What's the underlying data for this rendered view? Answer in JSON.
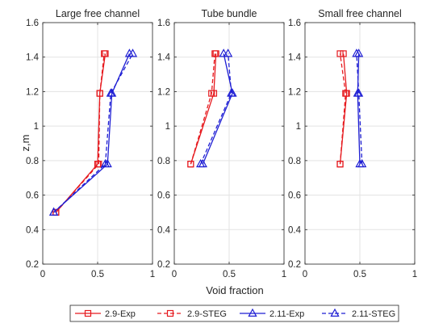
{
  "figure": {
    "ylabel": "z,m",
    "xlabel": "Void fraction"
  },
  "legend": {
    "placement": "bottom",
    "entries": [
      {
        "label": "2.9-Exp",
        "color": "#e6191e",
        "dash": false,
        "marker": "square"
      },
      {
        "label": "2.9-STEG",
        "color": "#e6191e",
        "dash": true,
        "marker": "square"
      },
      {
        "label": "2.11-Exp",
        "color": "#1f1fd4",
        "dash": false,
        "marker": "triangle"
      },
      {
        "label": "2.11-STEG",
        "color": "#1f1fd4",
        "dash": true,
        "marker": "triangle"
      }
    ]
  },
  "chart_data": [
    {
      "type": "line",
      "title": "Large free channel",
      "xlim": [
        0,
        1
      ],
      "ylim": [
        0.2,
        1.6
      ],
      "xticks": [
        "0",
        "0.5",
        "1"
      ],
      "yticks": [
        "0.2",
        "0.4",
        "0.6",
        "0.8",
        "1",
        "1.2",
        "1.4",
        "1.6"
      ],
      "grid": true,
      "series": [
        {
          "name": "2.9-Exp",
          "color": "#e6191e",
          "dash": false,
          "marker": "square",
          "x": [
            0.12,
            0.5,
            0.52,
            0.57
          ],
          "y": [
            0.5,
            0.78,
            1.19,
            1.42
          ]
        },
        {
          "name": "2.9-STEG",
          "color": "#e6191e",
          "dash": true,
          "marker": "square",
          "x": [
            0.12,
            0.51,
            0.52,
            0.56
          ],
          "y": [
            0.5,
            0.78,
            1.19,
            1.42
          ]
        },
        {
          "name": "2.11-Exp",
          "color": "#1f1fd4",
          "dash": false,
          "marker": "triangle",
          "x": [
            0.1,
            0.59,
            0.63,
            0.79
          ],
          "y": [
            0.5,
            0.78,
            1.19,
            1.42
          ]
        },
        {
          "name": "2.11-STEG",
          "color": "#1f1fd4",
          "dash": true,
          "marker": "triangle",
          "x": [
            0.1,
            0.57,
            0.62,
            0.82
          ],
          "y": [
            0.5,
            0.78,
            1.19,
            1.42
          ]
        }
      ]
    },
    {
      "type": "line",
      "title": "Tube bundle",
      "xlim": [
        0,
        1
      ],
      "ylim": [
        0.2,
        1.6
      ],
      "xticks": [
        "0",
        "0.5",
        "1"
      ],
      "yticks": [
        "0.2",
        "0.4",
        "0.6",
        "0.8",
        "1",
        "1.2",
        "1.4",
        "1.6"
      ],
      "grid": true,
      "series": [
        {
          "name": "2.9-Exp",
          "color": "#e6191e",
          "dash": false,
          "marker": "square",
          "x": [
            0.15,
            0.36,
            0.38
          ],
          "y": [
            0.78,
            1.19,
            1.42
          ]
        },
        {
          "name": "2.9-STEG",
          "color": "#e6191e",
          "dash": true,
          "marker": "square",
          "x": [
            0.15,
            0.34,
            0.37
          ],
          "y": [
            0.78,
            1.19,
            1.42
          ]
        },
        {
          "name": "2.11-Exp",
          "color": "#1f1fd4",
          "dash": false,
          "marker": "triangle",
          "x": [
            0.26,
            0.53,
            0.45
          ],
          "y": [
            0.78,
            1.19,
            1.42
          ]
        },
        {
          "name": "2.11-STEG",
          "color": "#1f1fd4",
          "dash": true,
          "marker": "triangle",
          "x": [
            0.24,
            0.52,
            0.49
          ],
          "y": [
            0.78,
            1.19,
            1.42
          ]
        }
      ]
    },
    {
      "type": "line",
      "title": "Small free channel",
      "xlim": [
        0,
        1
      ],
      "ylim": [
        0.2,
        1.6
      ],
      "xticks": [
        "0",
        "0.5",
        "1"
      ],
      "yticks": [
        "0.2",
        "0.4",
        "0.6",
        "0.8",
        "1",
        "1.2",
        "1.4",
        "1.6"
      ],
      "grid": true,
      "series": [
        {
          "name": "2.9-Exp",
          "color": "#e6191e",
          "dash": false,
          "marker": "square",
          "x": [
            0.32,
            0.38,
            0.35
          ],
          "y": [
            0.78,
            1.19,
            1.42
          ]
        },
        {
          "name": "2.9-STEG",
          "color": "#e6191e",
          "dash": true,
          "marker": "square",
          "x": [
            0.32,
            0.37,
            0.32
          ],
          "y": [
            0.78,
            1.19,
            1.42
          ]
        },
        {
          "name": "2.11-Exp",
          "color": "#1f1fd4",
          "dash": false,
          "marker": "triangle",
          "x": [
            0.5,
            0.48,
            0.49
          ],
          "y": [
            0.78,
            1.19,
            1.42
          ]
        },
        {
          "name": "2.11-STEG",
          "color": "#1f1fd4",
          "dash": true,
          "marker": "triangle",
          "x": [
            0.52,
            0.49,
            0.47
          ],
          "y": [
            0.78,
            1.19,
            1.42
          ]
        }
      ]
    }
  ]
}
